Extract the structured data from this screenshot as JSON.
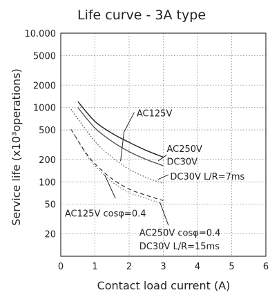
{
  "chart_data": {
    "type": "line",
    "title": "Life curve - 3A type",
    "xlabel": "Contact load current (A)",
    "ylabel": "Service life (x10³operations)",
    "xlim": [
      0,
      6
    ],
    "ylim": [
      10,
      10000
    ],
    "yscale": "log",
    "grid": true,
    "x_ticks": [
      0,
      1,
      2,
      3,
      4,
      5,
      6
    ],
    "y_ticks": [
      10000,
      5000,
      2000,
      1000,
      500,
      200,
      100,
      50,
      20
    ],
    "y_tick_labels": [
      "10.000",
      "5000",
      "2000",
      "1000",
      "500",
      "200",
      "100",
      "50",
      "20"
    ],
    "series": [
      {
        "name": "AC125V",
        "style": "solid",
        "color": "#222222",
        "x": [
          0.5,
          1,
          1.5,
          2,
          2.5,
          3
        ],
        "y": [
          1200,
          650,
          450,
          340,
          265,
          215
        ]
      },
      {
        "name": "AC250V DC30V",
        "style": "solid",
        "color": "#555555",
        "x": [
          0.5,
          1,
          1.5,
          2,
          2.5,
          3
        ],
        "y": [
          1000,
          530,
          350,
          255,
          200,
          165
        ]
      },
      {
        "name": "DC30V L/R=7ms",
        "style": "dotted",
        "color": "#555555",
        "x": [
          0.3,
          1,
          1.5,
          2,
          2.5,
          3
        ],
        "y": [
          950,
          350,
          215,
          148,
          115,
          95
        ]
      },
      {
        "name": "AC125V cosφ=0.4",
        "style": "dashed",
        "color": "#333333",
        "x": [
          0.3,
          0.7,
          1,
          1.5,
          2,
          2.5,
          3
        ],
        "y": [
          510,
          260,
          175,
          110,
          80,
          66,
          56
        ]
      },
      {
        "name": "AC250V cosφ=0.4 DC30V L/R=15ms",
        "style": "dotted",
        "color": "#777777",
        "x": [
          0.3,
          0.7,
          1,
          1.5,
          2,
          2.5,
          3
        ],
        "y": [
          510,
          250,
          165,
          100,
          72,
          60,
          50
        ]
      }
    ],
    "annotations": [
      {
        "lines": [
          "AC125V"
        ]
      },
      {
        "lines": [
          "AC250V",
          "DC30V"
        ]
      },
      {
        "lines": [
          "DC30V L/R=7ms"
        ]
      },
      {
        "lines": [
          "AC125V cosφ=0.4"
        ]
      },
      {
        "lines": [
          "AC250V cosφ=0.4",
          "DC30V L/R=15ms"
        ]
      }
    ]
  }
}
